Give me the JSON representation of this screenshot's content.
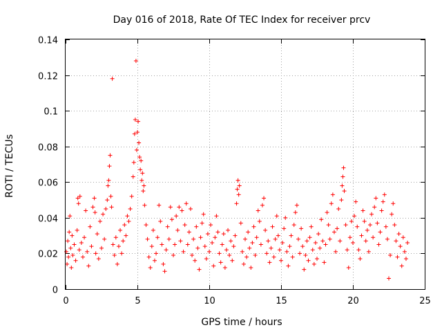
{
  "chart_data": {
    "type": "scatter",
    "title": "Day 016 of 2018, Rate Of TEC Index for receiver prcv",
    "xlabel": "GPS time / hours",
    "ylabel": "ROTI / TECUs",
    "xlim": [
      0,
      25
    ],
    "ylim": [
      0,
      0.14
    ],
    "xticks": [
      "0",
      "5",
      "10",
      "15",
      "20",
      "25"
    ],
    "yticks": [
      "0",
      "0.02",
      "0.04",
      "0.06",
      "0.08",
      "0.1",
      "0.12",
      "0.14"
    ],
    "grid": true,
    "marker": "+",
    "color": "#ff0000",
    "series": [
      {
        "name": "ROTI",
        "points": [
          [
            0.05,
            0.021
          ],
          [
            0.1,
            0.014
          ],
          [
            0.15,
            0.027
          ],
          [
            0.2,
            0.018
          ],
          [
            0.25,
            0.032
          ],
          [
            0.3,
            0.041
          ],
          [
            0.35,
            0.023
          ],
          [
            0.4,
            0.012
          ],
          [
            0.45,
            0.03
          ],
          [
            0.5,
            0.019
          ],
          [
            0.6,
            0.025
          ],
          [
            0.7,
            0.016
          ],
          [
            0.8,
            0.033
          ],
          [
            0.85,
            0.051
          ],
          [
            0.9,
            0.048
          ],
          [
            0.95,
            0.022
          ],
          [
            1.0,
            0.052
          ],
          [
            1.1,
            0.026
          ],
          [
            1.2,
            0.018
          ],
          [
            1.3,
            0.029
          ],
          [
            1.4,
            0.044
          ],
          [
            1.5,
            0.021
          ],
          [
            1.6,
            0.013
          ],
          [
            1.7,
            0.035
          ],
          [
            1.8,
            0.024
          ],
          [
            1.9,
            0.046
          ],
          [
            2.0,
            0.051
          ],
          [
            2.05,
            0.043
          ],
          [
            2.1,
            0.02
          ],
          [
            2.2,
            0.031
          ],
          [
            2.3,
            0.017
          ],
          [
            2.4,
            0.038
          ],
          [
            2.5,
            0.023
          ],
          [
            2.6,
            0.042
          ],
          [
            2.7,
            0.028
          ],
          [
            2.8,
            0.045
          ],
          [
            2.9,
            0.05
          ],
          [
            2.95,
            0.058
          ],
          [
            3.0,
            0.061
          ],
          [
            3.05,
            0.069
          ],
          [
            3.1,
            0.075
          ],
          [
            3.15,
            0.052
          ],
          [
            3.2,
            0.046
          ],
          [
            3.25,
            0.118
          ],
          [
            3.3,
            0.025
          ],
          [
            3.4,
            0.019
          ],
          [
            3.5,
            0.029
          ],
          [
            3.6,
            0.014
          ],
          [
            3.7,
            0.024
          ],
          [
            3.8,
            0.033
          ],
          [
            3.9,
            0.02
          ],
          [
            4.0,
            0.027
          ],
          [
            4.1,
            0.036
          ],
          [
            4.2,
            0.03
          ],
          [
            4.3,
            0.041
          ],
          [
            4.4,
            0.038
          ],
          [
            4.5,
            0.045
          ],
          [
            4.6,
            0.052
          ],
          [
            4.7,
            0.063
          ],
          [
            4.75,
            0.071
          ],
          [
            4.8,
            0.087
          ],
          [
            4.85,
            0.095
          ],
          [
            4.9,
            0.128
          ],
          [
            4.95,
            0.078
          ],
          [
            5.0,
            0.088
          ],
          [
            5.05,
            0.094
          ],
          [
            5.1,
            0.082
          ],
          [
            5.15,
            0.074
          ],
          [
            5.2,
            0.067
          ],
          [
            5.25,
            0.072
          ],
          [
            5.3,
            0.061
          ],
          [
            5.35,
            0.065
          ],
          [
            5.4,
            0.055
          ],
          [
            5.45,
            0.058
          ],
          [
            5.5,
            0.047
          ],
          [
            5.6,
            0.036
          ],
          [
            5.7,
            0.028
          ],
          [
            5.8,
            0.018
          ],
          [
            5.9,
            0.012
          ],
          [
            6.0,
            0.024
          ],
          [
            6.1,
            0.033
          ],
          [
            6.2,
            0.016
          ],
          [
            6.3,
            0.02
          ],
          [
            6.4,
            0.029
          ],
          [
            6.5,
            0.047
          ],
          [
            6.6,
            0.038
          ],
          [
            6.7,
            0.025
          ],
          [
            6.8,
            0.014
          ],
          [
            6.9,
            0.01
          ],
          [
            7.0,
            0.022
          ],
          [
            7.1,
            0.035
          ],
          [
            7.2,
            0.028
          ],
          [
            7.3,
            0.046
          ],
          [
            7.4,
            0.039
          ],
          [
            7.5,
            0.019
          ],
          [
            7.6,
            0.025
          ],
          [
            7.7,
            0.041
          ],
          [
            7.8,
            0.033
          ],
          [
            7.9,
            0.046
          ],
          [
            8.0,
            0.027
          ],
          [
            8.1,
            0.044
          ],
          [
            8.2,
            0.021
          ],
          [
            8.3,
            0.036
          ],
          [
            8.4,
            0.048
          ],
          [
            8.5,
            0.025
          ],
          [
            8.6,
            0.032
          ],
          [
            8.7,
            0.045
          ],
          [
            8.8,
            0.019
          ],
          [
            8.9,
            0.028
          ],
          [
            9.0,
            0.016
          ],
          [
            9.1,
            0.035
          ],
          [
            9.2,
            0.023
          ],
          [
            9.3,
            0.011
          ],
          [
            9.4,
            0.029
          ],
          [
            9.5,
            0.037
          ],
          [
            9.6,
            0.042
          ],
          [
            9.7,
            0.024
          ],
          [
            9.8,
            0.017
          ],
          [
            9.9,
            0.031
          ],
          [
            10.0,
            0.021
          ],
          [
            10.1,
            0.036
          ],
          [
            10.2,
            0.026
          ],
          [
            10.3,
            0.013
          ],
          [
            10.4,
            0.029
          ],
          [
            10.5,
            0.041
          ],
          [
            10.6,
            0.032
          ],
          [
            10.7,
            0.02
          ],
          [
            10.8,
            0.015
          ],
          [
            10.9,
            0.025
          ],
          [
            11.0,
            0.031
          ],
          [
            11.1,
            0.012
          ],
          [
            11.2,
            0.022
          ],
          [
            11.3,
            0.033
          ],
          [
            11.4,
            0.019
          ],
          [
            11.5,
            0.027
          ],
          [
            11.6,
            0.016
          ],
          [
            11.7,
            0.024
          ],
          [
            11.8,
            0.03
          ],
          [
            11.9,
            0.048
          ],
          [
            11.95,
            0.056
          ],
          [
            12.0,
            0.061
          ],
          [
            12.05,
            0.053
          ],
          [
            12.1,
            0.058
          ],
          [
            12.2,
            0.037
          ],
          [
            12.3,
            0.021
          ],
          [
            12.4,
            0.014
          ],
          [
            12.5,
            0.028
          ],
          [
            12.6,
            0.018
          ],
          [
            12.7,
            0.032
          ],
          [
            12.8,
            0.023
          ],
          [
            12.9,
            0.012
          ],
          [
            13.0,
            0.026
          ],
          [
            13.1,
            0.035
          ],
          [
            13.2,
            0.019
          ],
          [
            13.3,
            0.029
          ],
          [
            13.4,
            0.044
          ],
          [
            13.5,
            0.038
          ],
          [
            13.6,
            0.025
          ],
          [
            13.7,
            0.047
          ],
          [
            13.8,
            0.051
          ],
          [
            13.9,
            0.033
          ],
          [
            14.0,
            0.02
          ],
          [
            14.1,
            0.027
          ],
          [
            14.2,
            0.015
          ],
          [
            14.3,
            0.023
          ],
          [
            14.4,
            0.035
          ],
          [
            14.5,
            0.018
          ],
          [
            14.6,
            0.028
          ],
          [
            14.7,
            0.041
          ],
          [
            14.8,
            0.03
          ],
          [
            14.9,
            0.022
          ],
          [
            15.0,
            0.016
          ],
          [
            15.1,
            0.026
          ],
          [
            15.2,
            0.034
          ],
          [
            15.3,
            0.04
          ],
          [
            15.4,
            0.021
          ],
          [
            15.5,
            0.013
          ],
          [
            15.6,
            0.024
          ],
          [
            15.7,
            0.03
          ],
          [
            15.8,
            0.018
          ],
          [
            15.9,
            0.036
          ],
          [
            16.0,
            0.043
          ],
          [
            16.1,
            0.047
          ],
          [
            16.2,
            0.028
          ],
          [
            16.3,
            0.02
          ],
          [
            16.4,
            0.034
          ],
          [
            16.5,
            0.024
          ],
          [
            16.6,
            0.011
          ],
          [
            16.7,
            0.019
          ],
          [
            16.8,
            0.027
          ],
          [
            16.9,
            0.016
          ],
          [
            17.0,
            0.029
          ],
          [
            17.1,
            0.035
          ],
          [
            17.2,
            0.022
          ],
          [
            17.3,
            0.014
          ],
          [
            17.4,
            0.026
          ],
          [
            17.5,
            0.017
          ],
          [
            17.6,
            0.031
          ],
          [
            17.7,
            0.023
          ],
          [
            17.8,
            0.039
          ],
          [
            17.9,
            0.027
          ],
          [
            18.0,
            0.015
          ],
          [
            18.1,
            0.025
          ],
          [
            18.2,
            0.043
          ],
          [
            18.3,
            0.036
          ],
          [
            18.4,
            0.028
          ],
          [
            18.5,
            0.048
          ],
          [
            18.6,
            0.053
          ],
          [
            18.7,
            0.032
          ],
          [
            18.8,
            0.021
          ],
          [
            18.9,
            0.034
          ],
          [
            19.0,
            0.045
          ],
          [
            19.1,
            0.027
          ],
          [
            19.2,
            0.05
          ],
          [
            19.25,
            0.058
          ],
          [
            19.3,
            0.063
          ],
          [
            19.35,
            0.068
          ],
          [
            19.4,
            0.055
          ],
          [
            19.5,
            0.036
          ],
          [
            19.6,
            0.022
          ],
          [
            19.7,
            0.012
          ],
          [
            19.8,
            0.029
          ],
          [
            19.9,
            0.038
          ],
          [
            20.0,
            0.026
          ],
          [
            20.1,
            0.041
          ],
          [
            20.2,
            0.049
          ],
          [
            20.3,
            0.035
          ],
          [
            20.4,
            0.022
          ],
          [
            20.5,
            0.017
          ],
          [
            20.6,
            0.03
          ],
          [
            20.7,
            0.044
          ],
          [
            20.8,
            0.038
          ],
          [
            20.9,
            0.027
          ],
          [
            21.0,
            0.033
          ],
          [
            21.1,
            0.021
          ],
          [
            21.2,
            0.036
          ],
          [
            21.3,
            0.042
          ],
          [
            21.4,
            0.029
          ],
          [
            21.5,
            0.046
          ],
          [
            21.6,
            0.051
          ],
          [
            21.7,
            0.037
          ],
          [
            21.8,
            0.025
          ],
          [
            21.9,
            0.032
          ],
          [
            22.0,
            0.044
          ],
          [
            22.1,
            0.049
          ],
          [
            22.2,
            0.053
          ],
          [
            22.3,
            0.035
          ],
          [
            22.4,
            0.028
          ],
          [
            22.5,
            0.006
          ],
          [
            22.6,
            0.019
          ],
          [
            22.7,
            0.042
          ],
          [
            22.8,
            0.048
          ],
          [
            22.9,
            0.036
          ],
          [
            23.0,
            0.027
          ],
          [
            23.1,
            0.018
          ],
          [
            23.2,
            0.031
          ],
          [
            23.3,
            0.024
          ],
          [
            23.4,
            0.013
          ],
          [
            23.5,
            0.029
          ],
          [
            23.6,
            0.021
          ],
          [
            23.7,
            0.017
          ],
          [
            23.8,
            0.026
          ]
        ]
      }
    ]
  }
}
